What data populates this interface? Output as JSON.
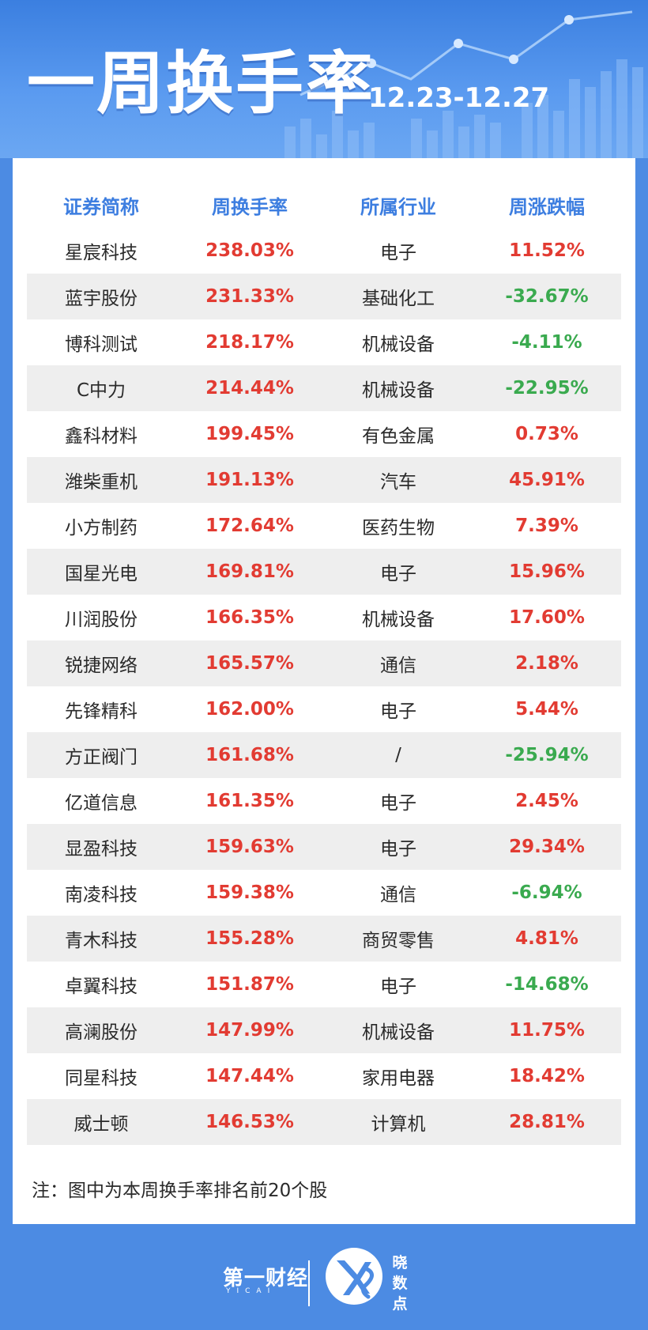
{
  "header": {
    "title": "一周换手率",
    "date_range": "12.23-12.27"
  },
  "table": {
    "headers": [
      "证券简称",
      "周换手率",
      "所属行业",
      "周涨跌幅"
    ],
    "rows": [
      {
        "name": "星宸科技",
        "turnover": "238.03%",
        "industry": "电子",
        "change": "11.52%",
        "direction": "up"
      },
      {
        "name": "蓝宇股份",
        "turnover": "231.33%",
        "industry": "基础化工",
        "change": "-32.67%",
        "direction": "down"
      },
      {
        "name": "博科测试",
        "turnover": "218.17%",
        "industry": "机械设备",
        "change": "-4.11%",
        "direction": "down"
      },
      {
        "name": "C中力",
        "turnover": "214.44%",
        "industry": "机械设备",
        "change": "-22.95%",
        "direction": "down"
      },
      {
        "name": "鑫科材料",
        "turnover": "199.45%",
        "industry": "有色金属",
        "change": "0.73%",
        "direction": "up"
      },
      {
        "name": "潍柴重机",
        "turnover": "191.13%",
        "industry": "汽车",
        "change": "45.91%",
        "direction": "up"
      },
      {
        "name": "小方制药",
        "turnover": "172.64%",
        "industry": "医药生物",
        "change": "7.39%",
        "direction": "up"
      },
      {
        "name": "国星光电",
        "turnover": "169.81%",
        "industry": "电子",
        "change": "15.96%",
        "direction": "up"
      },
      {
        "name": "川润股份",
        "turnover": "166.35%",
        "industry": "机械设备",
        "change": "17.60%",
        "direction": "up"
      },
      {
        "name": "锐捷网络",
        "turnover": "165.57%",
        "industry": "通信",
        "change": "2.18%",
        "direction": "up"
      },
      {
        "name": "先锋精科",
        "turnover": "162.00%",
        "industry": "电子",
        "change": "5.44%",
        "direction": "up"
      },
      {
        "name": "方正阀门",
        "turnover": "161.68%",
        "industry": "/",
        "change": "-25.94%",
        "direction": "down"
      },
      {
        "name": "亿道信息",
        "turnover": "161.35%",
        "industry": "电子",
        "change": "2.45%",
        "direction": "up"
      },
      {
        "name": "显盈科技",
        "turnover": "159.63%",
        "industry": "电子",
        "change": "29.34%",
        "direction": "up"
      },
      {
        "name": "南凌科技",
        "turnover": "159.38%",
        "industry": "通信",
        "change": "-6.94%",
        "direction": "down"
      },
      {
        "name": "青木科技",
        "turnover": "155.28%",
        "industry": "商贸零售",
        "change": "4.81%",
        "direction": "up"
      },
      {
        "name": "卓翼科技",
        "turnover": "151.87%",
        "industry": "电子",
        "change": "-14.68%",
        "direction": "down"
      },
      {
        "name": "高澜股份",
        "turnover": "147.99%",
        "industry": "机械设备",
        "change": "11.75%",
        "direction": "up"
      },
      {
        "name": "同星科技",
        "turnover": "147.44%",
        "industry": "家用电器",
        "change": "18.42%",
        "direction": "up"
      },
      {
        "name": "威士顿",
        "turnover": "146.53%",
        "industry": "计算机",
        "change": "28.81%",
        "direction": "up"
      }
    ]
  },
  "note": "注：图中为本周换手率排名前20个股",
  "footer": {
    "brand_main": "第一财经",
    "brand_main_sub": "YICAI",
    "brand_secondary": "晓数点"
  },
  "colors": {
    "background": "#4c8be3",
    "header_text": "#3d7ee0",
    "rise": "#e23b32",
    "fall": "#3aaa4f"
  },
  "icons": [
    "chart-decoration-icon",
    "yicai-logo-icon",
    "xiaoshudian-logo-icon"
  ]
}
